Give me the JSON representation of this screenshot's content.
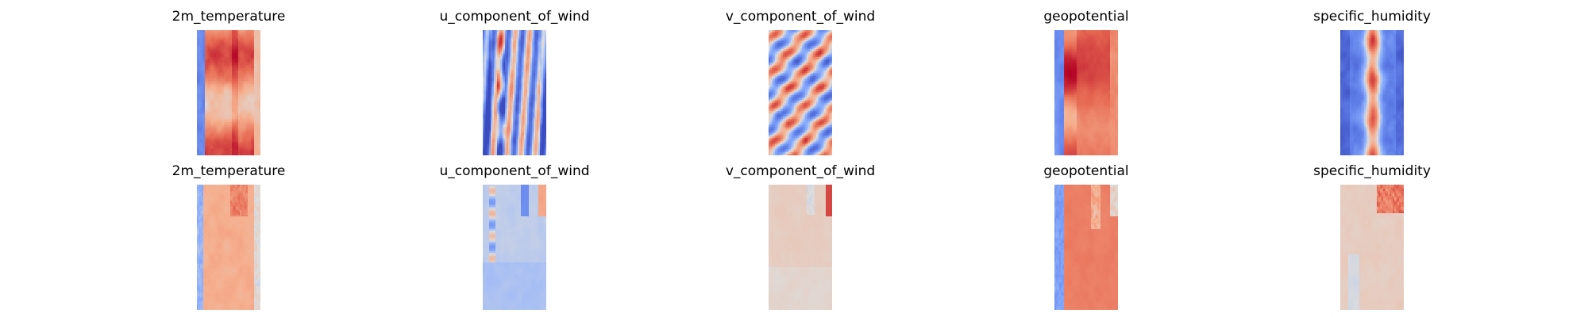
{
  "chart_data": {
    "type": "heatmap",
    "colormap": "coolwarm",
    "colormap_colors": [
      "#3b4cc0",
      "#dddddd",
      "#b40426"
    ],
    "axes_visible": false,
    "grid": false,
    "legend": "none",
    "panels": [
      {
        "title": "2m_temperature",
        "row": 0,
        "col": 0,
        "pattern": "temperature_field"
      },
      {
        "title": "u_component_of_wind",
        "row": 0,
        "col": 1,
        "pattern": "u_wind_field"
      },
      {
        "title": "v_component_of_wind",
        "row": 0,
        "col": 2,
        "pattern": "v_wind_field"
      },
      {
        "title": "geopotential",
        "row": 0,
        "col": 3,
        "pattern": "geopotential_field"
      },
      {
        "title": "specific_humidity",
        "row": 0,
        "col": 4,
        "pattern": "humidity_field"
      },
      {
        "title": "2m_temperature",
        "row": 1,
        "col": 0,
        "pattern": "temperature_error"
      },
      {
        "title": "u_component_of_wind",
        "row": 1,
        "col": 1,
        "pattern": "u_wind_error"
      },
      {
        "title": "v_component_of_wind",
        "row": 1,
        "col": 2,
        "pattern": "v_wind_error"
      },
      {
        "title": "geopotential",
        "row": 1,
        "col": 3,
        "pattern": "geopotential_error"
      },
      {
        "title": "specific_humidity",
        "row": 1,
        "col": 4,
        "pattern": "humidity_error"
      }
    ]
  }
}
